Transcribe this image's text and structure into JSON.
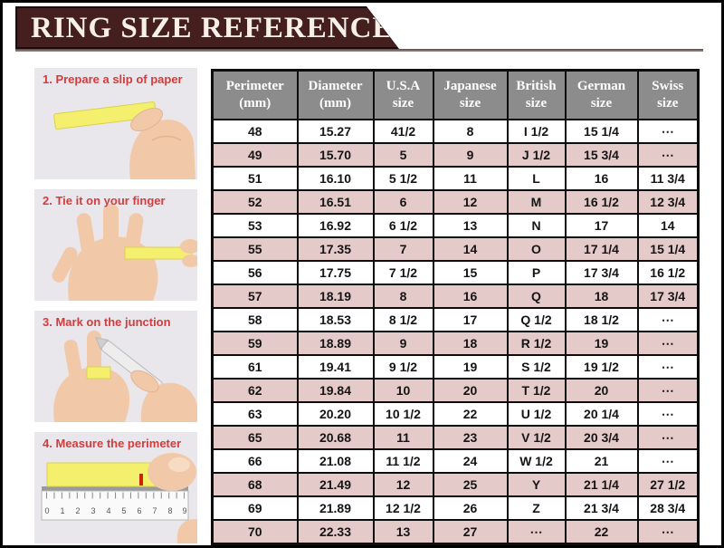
{
  "page": {
    "title": "RING SIZE REFERENCE"
  },
  "steps": [
    {
      "label": "1. Prepare a slip of paper",
      "icon": "hand-holding-paper-strip-photo"
    },
    {
      "label": "2. Tie it on your finger",
      "icon": "strip-tied-on-finger-photo"
    },
    {
      "label": "3. Mark on the junction",
      "icon": "pen-marking-junction-photo"
    },
    {
      "label": "4. Measure the perimeter",
      "icon": "ruler-measuring-strip-photo"
    }
  ],
  "chart_data": {
    "type": "table",
    "title": "RING SIZE REFERENCE",
    "columns": [
      [
        "Perimeter",
        "(mm)"
      ],
      [
        "Diameter",
        "(mm)"
      ],
      [
        "U.S.A",
        "size"
      ],
      [
        "Japanese",
        "size"
      ],
      [
        "British",
        "size"
      ],
      [
        "German",
        "size"
      ],
      [
        "Swiss",
        "size"
      ]
    ],
    "rows": [
      [
        "48",
        "15.27",
        "41/2",
        "8",
        "I 1/2",
        "15 1/4",
        "⋯"
      ],
      [
        "49",
        "15.70",
        "5",
        "9",
        "J 1/2",
        "15 3/4",
        "⋯"
      ],
      [
        "51",
        "16.10",
        "5 1/2",
        "11",
        "L",
        "16",
        "11 3/4"
      ],
      [
        "52",
        "16.51",
        "6",
        "12",
        "M",
        "16 1/2",
        "12 3/4"
      ],
      [
        "53",
        "16.92",
        "6 1/2",
        "13",
        "N",
        "17",
        "14"
      ],
      [
        "55",
        "17.35",
        "7",
        "14",
        "O",
        "17 1/4",
        "15 1/4"
      ],
      [
        "56",
        "17.75",
        "7 1/2",
        "15",
        "P",
        "17 3/4",
        "16 1/2"
      ],
      [
        "57",
        "18.19",
        "8",
        "16",
        "Q",
        "18",
        "17 3/4"
      ],
      [
        "58",
        "18.53",
        "8 1/2",
        "17",
        "Q 1/2",
        "18 1/2",
        "⋯"
      ],
      [
        "59",
        "18.89",
        "9",
        "18",
        "R 1/2",
        "19",
        "⋯"
      ],
      [
        "61",
        "19.41",
        "9 1/2",
        "19",
        "S 1/2",
        "19 1/2",
        "⋯"
      ],
      [
        "62",
        "19.84",
        "10",
        "20",
        "T 1/2",
        "20",
        "⋯"
      ],
      [
        "63",
        "20.20",
        "10 1/2",
        "22",
        "U 1/2",
        "20 1/4",
        "⋯"
      ],
      [
        "65",
        "20.68",
        "11",
        "23",
        "V 1/2",
        "20 3/4",
        "⋯"
      ],
      [
        "66",
        "21.08",
        "11 1/2",
        "24",
        "W 1/2",
        "21",
        "⋯"
      ],
      [
        "68",
        "21.49",
        "12",
        "25",
        "Y",
        "21 1/4",
        "27 1/2"
      ],
      [
        "69",
        "21.89",
        "12 1/2",
        "26",
        "Z",
        "21 3/4",
        "28 3/4"
      ],
      [
        "70",
        "22.33",
        "13",
        "27",
        "⋯",
        "22",
        "⋯"
      ]
    ]
  },
  "colors": {
    "banner_bg": "#451e1e",
    "banner_text": "#f6f0e9",
    "table_header_bg": "#8c8c8c",
    "table_row_alt_bg": "#e5caca",
    "table_border": "#0d0d0d",
    "step_label": "#d43c3c",
    "step_photo_bg": "#eae7ec",
    "paper_strip": "#f4ef6d",
    "skin": "#f1c9a8"
  }
}
